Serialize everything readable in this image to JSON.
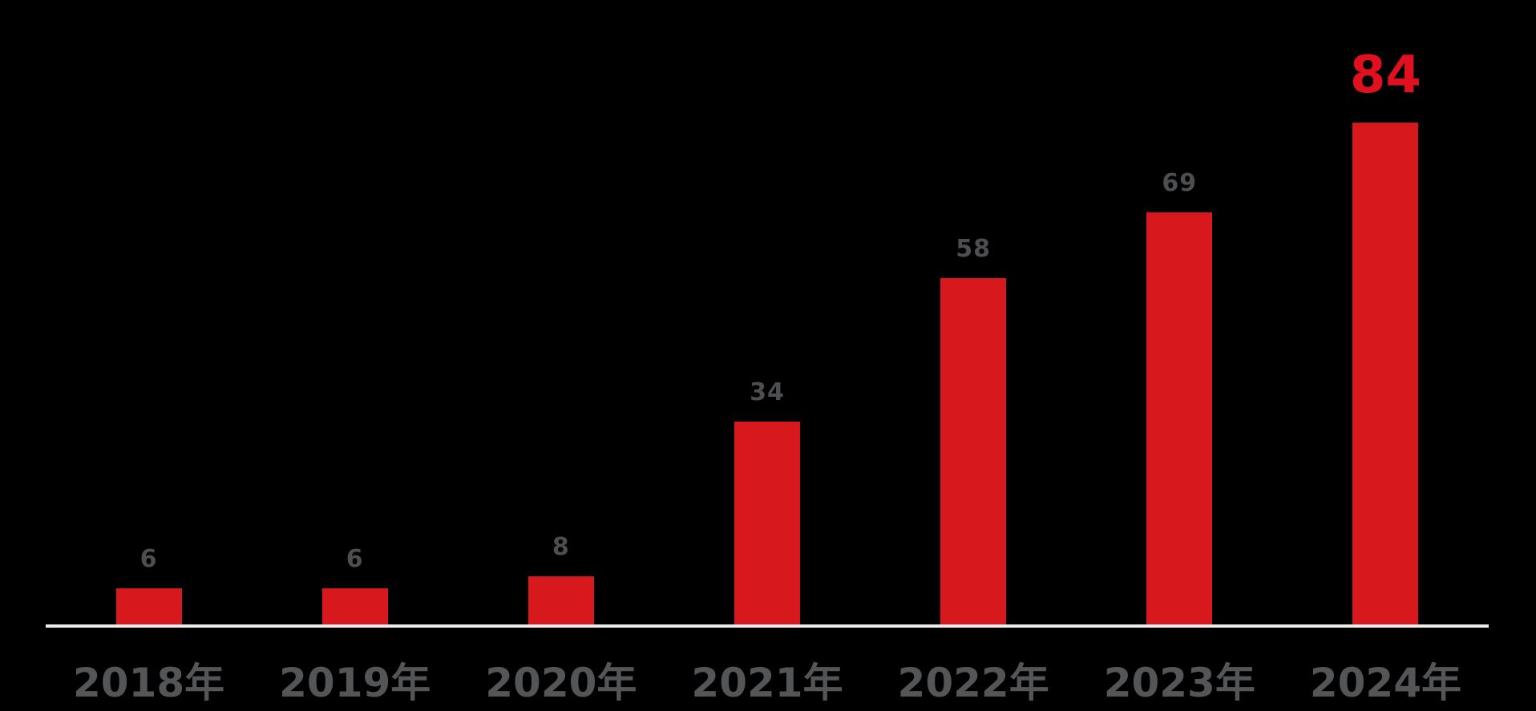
{
  "chart_data": {
    "type": "bar",
    "title": "",
    "xlabel": "",
    "ylabel": "",
    "categories": [
      "2018年",
      "2019年",
      "2020年",
      "2021年",
      "2022年",
      "2023年",
      "2024年"
    ],
    "values": [
      6,
      6,
      8,
      34,
      58,
      69,
      84
    ],
    "ylim": [
      0,
      105
    ],
    "grid": false,
    "legend": null,
    "bar_color": "#d7191e",
    "value_label_color": "#4d4e50",
    "highlight_index": 6,
    "highlight_value": 84,
    "highlight_label_color": "#e0101e",
    "x_tick_label_color": "#545557",
    "axis_line_color": "#ececec",
    "background_color": "#000000"
  }
}
